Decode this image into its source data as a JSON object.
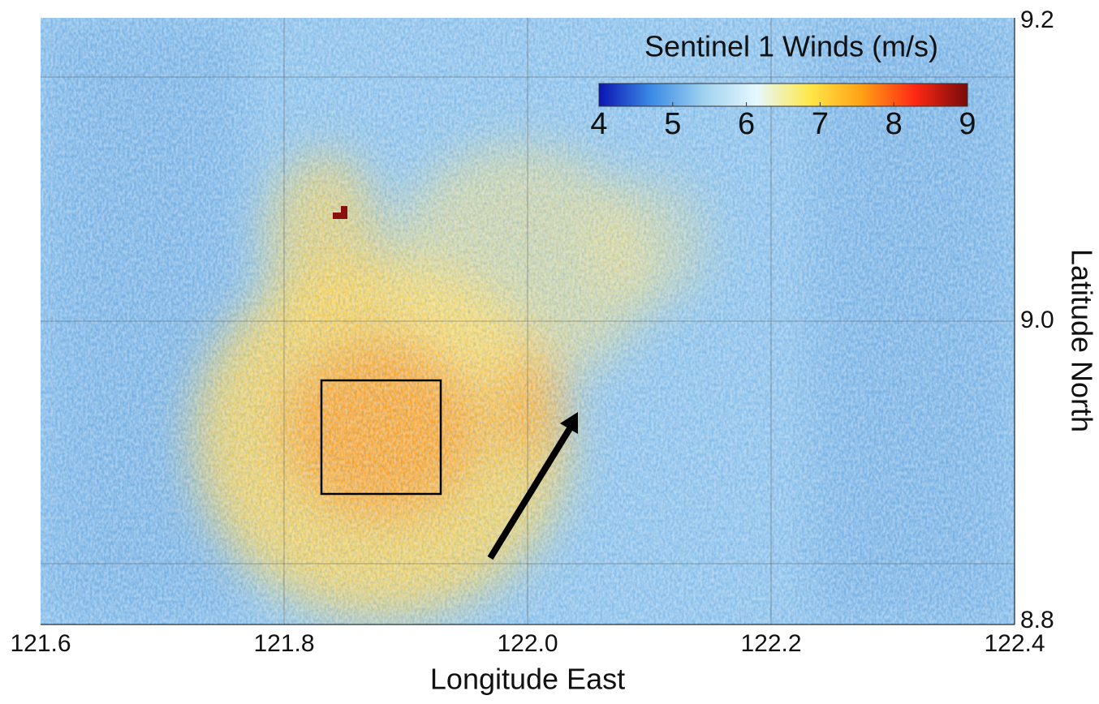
{
  "chart_data": {
    "type": "map",
    "title": "Sentinel 1 Winds (m/s)",
    "xlabel": "Longitude East",
    "ylabel": "Latitude North",
    "xlim": [
      121.6,
      122.4
    ],
    "xticks": [
      121.6,
      121.8,
      {
        "value": 122,
        "label": "122.0"
      },
      122.2,
      122.4
    ],
    "ylim": [
      8.8,
      9.2
    ],
    "yticks": [
      8.8,
      {
        "value": 9,
        "label": "9.0"
      },
      9.2
    ],
    "clim": [
      4,
      9
    ],
    "cticks": [
      4,
      5,
      6,
      7,
      8,
      9
    ],
    "colormap": [
      "#0a14b4",
      "#3c8ce6",
      "#a0d2f0",
      "#e6f8ff",
      "#ffe84a",
      "#ffa014",
      "#ff2814",
      "#780a0a"
    ],
    "grid": true
  }
}
